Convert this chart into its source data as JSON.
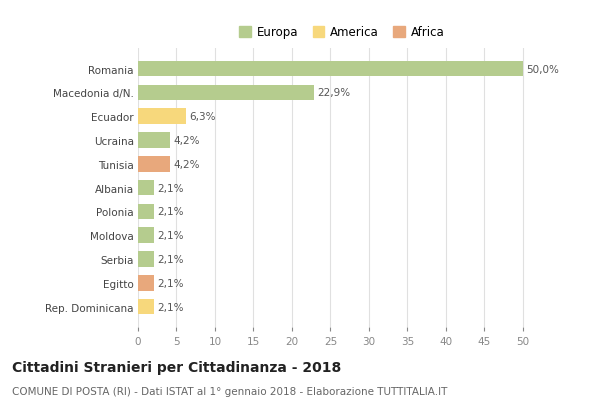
{
  "countries": [
    "Romania",
    "Macedonia d/N.",
    "Ecuador",
    "Ucraina",
    "Tunisia",
    "Albania",
    "Polonia",
    "Moldova",
    "Serbia",
    "Egitto",
    "Rep. Dominicana"
  ],
  "values": [
    50.0,
    22.9,
    6.3,
    4.2,
    4.2,
    2.1,
    2.1,
    2.1,
    2.1,
    2.1,
    2.1
  ],
  "labels": [
    "50,0%",
    "22,9%",
    "6,3%",
    "4,2%",
    "4,2%",
    "2,1%",
    "2,1%",
    "2,1%",
    "2,1%",
    "2,1%",
    "2,1%"
  ],
  "categories": [
    "Europa",
    "America",
    "Africa"
  ],
  "continent": [
    "Europa",
    "Europa",
    "America",
    "Europa",
    "Africa",
    "Europa",
    "Europa",
    "Europa",
    "Europa",
    "Africa",
    "America"
  ],
  "colors": {
    "Europa": "#b5cc8e",
    "America": "#f7d87c",
    "Africa": "#e8a87c"
  },
  "xlim": [
    0,
    53
  ],
  "xticks": [
    0,
    5,
    10,
    15,
    20,
    25,
    30,
    35,
    40,
    45,
    50
  ],
  "title": "Cittadini Stranieri per Cittadinanza - 2018",
  "subtitle": "COMUNE DI POSTA (RI) - Dati ISTAT al 1° gennaio 2018 - Elaborazione TUTTITALIA.IT",
  "title_fontsize": 10,
  "subtitle_fontsize": 7.5,
  "background_color": "#ffffff",
  "grid_color": "#e0e0e0",
  "bar_height": 0.65
}
